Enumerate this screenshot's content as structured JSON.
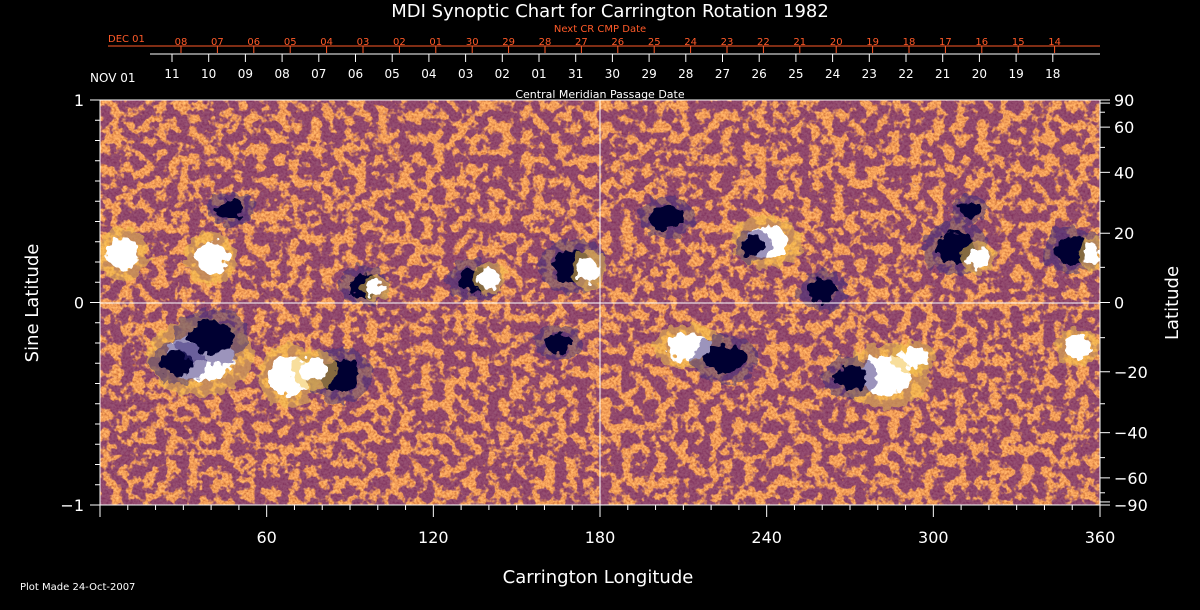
{
  "chart_data": {
    "type": "heatmap",
    "title": "MDI Synoptic Chart for Carrington Rotation 1982",
    "xlabel": "Carrington Longitude",
    "ylabel_left": "Sine Latitude",
    "ylabel_right": "Latitude",
    "xlim": [
      0,
      360
    ],
    "ylim": [
      -1,
      1
    ],
    "x_ticks": [
      60,
      120,
      180,
      240,
      300,
      360
    ],
    "y_ticks_left": [
      {
        "value": 1,
        "label": "1"
      },
      {
        "value": 0,
        "label": "0"
      },
      {
        "value": -1,
        "label": "−1"
      }
    ],
    "y_ticks_right": [
      90,
      60,
      40,
      20,
      0,
      -20,
      -40,
      -60,
      -90
    ],
    "y_ticks_right_labels": [
      "90",
      "60",
      "40",
      "20",
      "0",
      "−20",
      "−40",
      "−60",
      "−90"
    ],
    "grid_lines": {
      "longitude": 180,
      "sine_latitude": 0
    },
    "top_axis_white": {
      "start_label": "NOV 01",
      "dates": [
        "11",
        "10",
        "09",
        "08",
        "07",
        "06",
        "05",
        "04",
        "03",
        "02",
        "01",
        "31",
        "30",
        "29",
        "28",
        "27",
        "26",
        "25",
        "24",
        "23",
        "22",
        "21",
        "20",
        "19",
        "18"
      ],
      "caption": "Central Meridian Passage Date"
    },
    "top_axis_red": {
      "start_label": "DEC 01",
      "dates": [
        "08",
        "07",
        "06",
        "05",
        "04",
        "03",
        "02",
        "01",
        "30",
        "29",
        "28",
        "27",
        "26",
        "25",
        "24",
        "23",
        "22",
        "21",
        "20",
        "19",
        "18",
        "17",
        "16",
        "15",
        "14"
      ],
      "caption": "Next CR CMP Date"
    },
    "footnote": "Plot Made 24-Oct-2007",
    "colors": {
      "background": "#000000",
      "field_base": "#d8420c",
      "field_positive": "#ffffff",
      "field_negative": "#000033",
      "accent_text": "#ff5a28"
    },
    "regions": [
      {
        "lon": 36,
        "lat": -0.27,
        "rlon": 12,
        "rlat": 0.12,
        "polarity": "positive"
      },
      {
        "lon": 28,
        "lat": -0.3,
        "rlon": 6,
        "rlat": 0.06,
        "polarity": "negative"
      },
      {
        "lon": 47,
        "lat": 0.46,
        "rlon": 5,
        "rlat": 0.05,
        "polarity": "negative"
      },
      {
        "lon": 8,
        "lat": 0.24,
        "rlon": 6,
        "rlat": 0.08,
        "polarity": "positive"
      },
      {
        "lon": 40,
        "lat": 0.22,
        "rlon": 6,
        "rlat": 0.08,
        "polarity": "positive"
      },
      {
        "lon": 40,
        "lat": -0.17,
        "rlon": 8,
        "rlat": 0.08,
        "polarity": "negative"
      },
      {
        "lon": 68,
        "lat": -0.36,
        "rlon": 7,
        "rlat": 0.1,
        "polarity": "positive"
      },
      {
        "lon": 86,
        "lat": -0.36,
        "rlon": 7,
        "rlat": 0.08,
        "polarity": "negative"
      },
      {
        "lon": 77,
        "lat": -0.33,
        "rlon": 5,
        "rlat": 0.06,
        "polarity": "positive"
      },
      {
        "lon": 95,
        "lat": 0.08,
        "rlon": 5,
        "rlat": 0.06,
        "polarity": "negative"
      },
      {
        "lon": 99,
        "lat": 0.07,
        "rlon": 3,
        "rlat": 0.04,
        "polarity": "positive"
      },
      {
        "lon": 135,
        "lat": 0.11,
        "rlon": 6,
        "rlat": 0.06,
        "polarity": "negative"
      },
      {
        "lon": 140,
        "lat": 0.12,
        "rlon": 4,
        "rlat": 0.05,
        "polarity": "positive"
      },
      {
        "lon": 170,
        "lat": 0.18,
        "rlon": 7,
        "rlat": 0.08,
        "polarity": "negative"
      },
      {
        "lon": 176,
        "lat": 0.16,
        "rlon": 4,
        "rlat": 0.06,
        "polarity": "positive"
      },
      {
        "lon": 165,
        "lat": -0.2,
        "rlon": 5,
        "rlat": 0.05,
        "polarity": "negative"
      },
      {
        "lon": 204,
        "lat": 0.42,
        "rlon": 6,
        "rlat": 0.06,
        "polarity": "negative"
      },
      {
        "lon": 212,
        "lat": -0.22,
        "rlon": 8,
        "rlat": 0.07,
        "polarity": "positive"
      },
      {
        "lon": 225,
        "lat": -0.28,
        "rlon": 7,
        "rlat": 0.07,
        "polarity": "negative"
      },
      {
        "lon": 240,
        "lat": 0.3,
        "rlon": 8,
        "rlat": 0.08,
        "polarity": "positive"
      },
      {
        "lon": 235,
        "lat": 0.28,
        "rlon": 4,
        "rlat": 0.05,
        "polarity": "negative"
      },
      {
        "lon": 260,
        "lat": 0.06,
        "rlon": 5,
        "rlat": 0.06,
        "polarity": "negative"
      },
      {
        "lon": 283,
        "lat": -0.36,
        "rlon": 10,
        "rlat": 0.1,
        "polarity": "positive"
      },
      {
        "lon": 270,
        "lat": -0.37,
        "rlon": 6,
        "rlat": 0.06,
        "polarity": "negative"
      },
      {
        "lon": 293,
        "lat": -0.27,
        "rlon": 5,
        "rlat": 0.05,
        "polarity": "positive"
      },
      {
        "lon": 308,
        "lat": 0.27,
        "rlon": 7,
        "rlat": 0.08,
        "polarity": "negative"
      },
      {
        "lon": 316,
        "lat": 0.22,
        "rlon": 4,
        "rlat": 0.05,
        "polarity": "positive"
      },
      {
        "lon": 313,
        "lat": 0.46,
        "rlon": 4,
        "rlat": 0.04,
        "polarity": "negative"
      },
      {
        "lon": 350,
        "lat": 0.26,
        "rlon": 6,
        "rlat": 0.07,
        "polarity": "negative"
      },
      {
        "lon": 357,
        "lat": 0.24,
        "rlon": 3,
        "rlat": 0.05,
        "polarity": "positive"
      },
      {
        "lon": 352,
        "lat": -0.22,
        "rlon": 5,
        "rlat": 0.06,
        "polarity": "positive"
      }
    ]
  }
}
